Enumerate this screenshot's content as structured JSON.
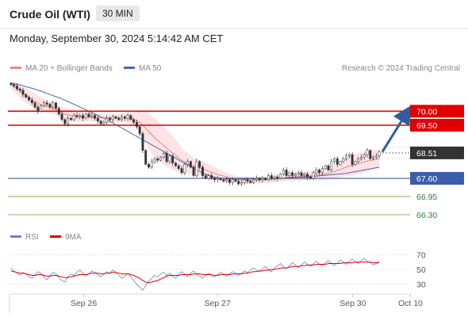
{
  "header": {
    "title": "Crude Oil (WTI)",
    "timeframe": "30 MIN",
    "datetime": "Monday, September 30, 2024 5:14:42 AM CET"
  },
  "legend": {
    "ma20_bb": "MA 20 + Bollinger Bands",
    "ma50": "MA 50",
    "credit": "Research © 2024 Trading Central",
    "rsi": "RSI",
    "ma9": "9MA"
  },
  "colors": {
    "candle": "#333333",
    "ma20": "#e88a8a",
    "band": "#fde0e2",
    "ma50": "#4b69a8",
    "resistance": "#e00000",
    "support_blue": "#3b5ea8",
    "support_green": "#7cb342",
    "current_label": "#333333",
    "arrow": "#2f5d9e",
    "rsi_line": "#6f84c4",
    "rsi_ma": "#e00000"
  },
  "chart_data": [
    {
      "type": "candlestick",
      "xlabels": [
        "Sep 26",
        "Sep 27",
        "Sep 30",
        "Oct 10"
      ],
      "ylim": [
        66.1,
        71.2
      ],
      "current_price": 68.51,
      "levels": [
        {
          "label": "70.00",
          "value": 70.0,
          "kind": "resistance"
        },
        {
          "label": "69.50",
          "value": 69.5,
          "kind": "resistance"
        },
        {
          "label": "67.60",
          "value": 67.6,
          "kind": "support-major"
        },
        {
          "label": "66.95",
          "value": 66.95,
          "kind": "support"
        },
        {
          "label": "66.30",
          "value": 66.3,
          "kind": "support"
        }
      ],
      "current_label": "68.51",
      "projection": {
        "from": 68.55,
        "to": 70.0
      },
      "close": [
        70.95,
        70.9,
        70.8,
        70.75,
        70.6,
        70.5,
        70.4,
        70.3,
        70.15,
        70.0,
        70.2,
        70.3,
        70.25,
        70.15,
        70.3,
        70.1,
        69.9,
        69.7,
        69.55,
        69.75,
        69.7,
        69.85,
        69.8,
        69.85,
        69.75,
        69.9,
        69.8,
        69.85,
        69.75,
        69.65,
        69.55,
        69.6,
        69.75,
        69.7,
        69.8,
        69.75,
        69.7,
        69.8,
        69.75,
        69.85,
        69.7,
        69.6,
        69.45,
        69.2,
        68.6,
        68.1,
        68.0,
        68.2,
        68.3,
        68.25,
        68.35,
        68.5,
        68.2,
        68.4,
        68.15,
        68.05,
        67.95,
        67.8,
        68.1,
        68.2,
        68.0,
        67.7,
        68.2,
        68.0,
        67.7,
        67.6,
        67.7,
        67.6,
        67.55,
        67.6,
        67.55,
        67.5,
        67.55,
        67.45,
        67.55,
        67.5,
        67.4,
        67.45,
        67.55,
        67.5,
        67.45,
        67.55,
        67.6,
        67.55,
        67.6,
        67.55,
        67.7,
        67.6,
        67.65,
        67.6,
        67.75,
        67.9,
        67.7,
        67.8,
        67.7,
        67.75,
        67.8,
        67.7,
        67.75,
        67.65,
        67.6,
        67.8,
        67.9,
        67.8,
        67.95,
        68.05,
        67.9,
        68.2,
        68.3,
        68.1,
        68.2,
        68.3,
        68.4,
        68.45,
        68.1,
        68.2,
        68.3,
        68.35,
        68.45,
        68.6,
        68.3,
        68.35,
        68.4,
        68.55
      ],
      "ma20": [
        70.92,
        70.88,
        70.8,
        70.72,
        70.64,
        70.56,
        70.49,
        70.42,
        70.35,
        70.29,
        70.24,
        70.2,
        70.17,
        70.13,
        70.1,
        70.06,
        70.0,
        69.95,
        69.9,
        69.87,
        69.84,
        69.82,
        69.81,
        69.8,
        69.79,
        69.79,
        69.8,
        69.79,
        69.79,
        69.78,
        69.77,
        69.76,
        69.76,
        69.76,
        69.76,
        69.76,
        69.76,
        69.76,
        69.76,
        69.76,
        69.74,
        69.71,
        69.66,
        69.59,
        69.5,
        69.39,
        69.27,
        69.16,
        69.05,
        68.95,
        68.86,
        68.77,
        68.68,
        68.59,
        68.5,
        68.42,
        68.33,
        68.25,
        68.19,
        68.13,
        68.08,
        68.03,
        68.0,
        67.97,
        67.93,
        67.9,
        67.86,
        67.82,
        67.78,
        67.74,
        67.71,
        67.68,
        67.65,
        67.62,
        67.6,
        67.58,
        67.56,
        67.55,
        67.54,
        67.53,
        67.53,
        67.53,
        67.53,
        67.54,
        67.55,
        67.55,
        67.56,
        67.57,
        67.58,
        67.59,
        67.6,
        67.61,
        67.63,
        67.64,
        67.65,
        67.66,
        67.67,
        67.68,
        67.68,
        67.69,
        67.69,
        67.7,
        67.71,
        67.72,
        67.74,
        67.76,
        67.78,
        67.81,
        67.85,
        67.88,
        67.92,
        67.96,
        68.0,
        68.04,
        68.07,
        68.1,
        68.13,
        68.16,
        68.19,
        68.22,
        68.24,
        68.26,
        68.28,
        68.3
      ],
      "ma50": [
        71.0,
        70.98,
        70.96,
        70.94,
        70.91,
        70.88,
        70.85,
        70.82,
        70.79,
        70.75,
        70.72,
        70.68,
        70.64,
        70.6,
        70.56,
        70.52,
        70.48,
        70.44,
        70.39,
        70.35,
        70.3,
        70.25,
        70.2,
        70.15,
        70.1,
        70.05,
        70.0,
        69.95,
        69.9,
        69.85,
        69.8,
        69.75,
        69.7,
        69.64,
        69.58,
        69.52,
        69.46,
        69.4,
        69.34,
        69.28,
        69.22,
        69.16,
        69.1,
        69.04,
        68.98,
        68.92,
        68.86,
        68.8,
        68.74,
        68.68,
        68.62,
        68.56,
        68.5,
        68.44,
        68.38,
        68.32,
        68.26,
        68.2,
        68.14,
        68.08,
        68.02,
        67.96,
        67.9,
        67.85,
        67.8,
        67.75,
        67.71,
        67.67,
        67.64,
        67.62,
        67.6,
        67.59,
        67.58,
        67.58,
        67.58,
        67.58,
        67.58,
        67.58,
        67.58,
        67.58,
        67.58,
        67.58,
        67.58,
        67.58,
        67.58,
        67.58,
        67.59,
        67.59,
        67.6,
        67.6,
        67.61,
        67.61,
        67.62,
        67.62,
        67.63,
        67.63,
        67.64,
        67.64,
        67.65,
        67.65,
        67.66,
        67.67,
        67.68,
        67.69,
        67.7,
        67.71,
        67.72,
        67.73,
        67.74,
        67.75,
        67.76,
        67.77,
        67.78,
        67.8,
        67.82,
        67.84,
        67.86,
        67.88,
        67.9,
        67.92,
        67.94,
        67.96,
        67.98,
        68.0
      ],
      "bb_half_width": [
        0.15,
        0.18,
        0.22,
        0.25,
        0.27,
        0.28,
        0.28,
        0.28,
        0.28,
        0.27,
        0.26,
        0.24,
        0.22,
        0.21,
        0.2,
        0.2,
        0.21,
        0.22,
        0.22,
        0.22,
        0.21,
        0.2,
        0.19,
        0.18,
        0.17,
        0.16,
        0.16,
        0.16,
        0.16,
        0.15,
        0.15,
        0.15,
        0.15,
        0.15,
        0.15,
        0.15,
        0.15,
        0.15,
        0.16,
        0.17,
        0.2,
        0.25,
        0.32,
        0.4,
        0.5,
        0.58,
        0.64,
        0.68,
        0.7,
        0.7,
        0.7,
        0.69,
        0.67,
        0.64,
        0.6,
        0.55,
        0.5,
        0.45,
        0.4,
        0.36,
        0.33,
        0.31,
        0.3,
        0.29,
        0.28,
        0.27,
        0.26,
        0.25,
        0.23,
        0.21,
        0.19,
        0.17,
        0.15,
        0.14,
        0.13,
        0.12,
        0.12,
        0.12,
        0.12,
        0.12,
        0.12,
        0.12,
        0.12,
        0.12,
        0.12,
        0.12,
        0.12,
        0.12,
        0.12,
        0.12,
        0.12,
        0.13,
        0.14,
        0.15,
        0.15,
        0.16,
        0.16,
        0.16,
        0.16,
        0.16,
        0.16,
        0.17,
        0.18,
        0.19,
        0.2,
        0.21,
        0.22,
        0.23,
        0.24,
        0.26,
        0.28,
        0.3,
        0.32,
        0.34,
        0.36,
        0.37,
        0.38,
        0.38,
        0.38,
        0.37,
        0.36,
        0.35,
        0.34,
        0.33
      ]
    },
    {
      "type": "line",
      "name": "RSI",
      "ylim": [
        20,
        80
      ],
      "yticks": [
        70,
        50,
        30
      ],
      "rsi": [
        52,
        48,
        45,
        42,
        46,
        44,
        40,
        38,
        43,
        47,
        45,
        40,
        36,
        42,
        46,
        44,
        39,
        35,
        33,
        40,
        44,
        42,
        46,
        49,
        45,
        41,
        44,
        48,
        46,
        43,
        40,
        44,
        47,
        45,
        49,
        46,
        42,
        38,
        41,
        45,
        40,
        35,
        30,
        26,
        22,
        28,
        34,
        38,
        42,
        40,
        44,
        46,
        42,
        45,
        40,
        38,
        43,
        47,
        44,
        40,
        45,
        48,
        44,
        41,
        38,
        42,
        45,
        41,
        40,
        43,
        46,
        44,
        41,
        44,
        47,
        45,
        42,
        45,
        48,
        46,
        49,
        52,
        49,
        47,
        51,
        54,
        50,
        47,
        52,
        55,
        58,
        54,
        51,
        55,
        59,
        56,
        52,
        56,
        60,
        57,
        54,
        58,
        61,
        57,
        55,
        59,
        62,
        58,
        55,
        59,
        63,
        60,
        57,
        61,
        64,
        60,
        58,
        62,
        65,
        61,
        59,
        56,
        58,
        61
      ],
      "rsi_ma": [
        48,
        47,
        46,
        45,
        45,
        44,
        43,
        42,
        42,
        43,
        43,
        42,
        41,
        41,
        42,
        42,
        41,
        40,
        39,
        39,
        40,
        41,
        42,
        43,
        43,
        43,
        44,
        45,
        45,
        45,
        44,
        44,
        45,
        45,
        46,
        46,
        45,
        44,
        44,
        44,
        43,
        42,
        40,
        38,
        35,
        33,
        32,
        33,
        34,
        35,
        37,
        39,
        41,
        42,
        42,
        42,
        42,
        43,
        43,
        43,
        43,
        44,
        44,
        44,
        43,
        43,
        43,
        43,
        42,
        42,
        43,
        43,
        43,
        43,
        44,
        44,
        44,
        44,
        45,
        45,
        46,
        47,
        47,
        48,
        48,
        49,
        49,
        50,
        50,
        51,
        52,
        52,
        52,
        53,
        54,
        54,
        54,
        55,
        55,
        56,
        56,
        56,
        57,
        57,
        57,
        57,
        58,
        58,
        58,
        58,
        58,
        59,
        59,
        59,
        59,
        60,
        60,
        60,
        60,
        60,
        60,
        59,
        59,
        59
      ]
    }
  ]
}
